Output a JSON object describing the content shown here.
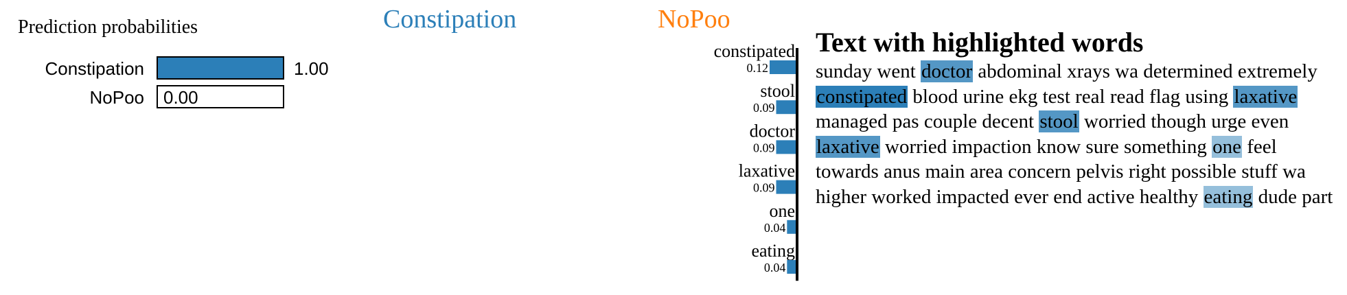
{
  "prediction_probabilities": {
    "title": "Prediction probabilities",
    "items": [
      {
        "label": "Constipation",
        "value": 1.0,
        "value_label": "1.00",
        "color": "#2c7fb8"
      },
      {
        "label": "NoPoo",
        "value": 0.0,
        "value_label": "0.00",
        "color": "#ff7f0e"
      }
    ]
  },
  "class_titles": {
    "left": "Constipation",
    "right": "NoPoo",
    "left_color": "#2c7fb8",
    "right_color": "#ff7f0e"
  },
  "chart_data": {
    "type": "bar",
    "orientation": "horizontal",
    "side": "Constipation",
    "bar_color": "#2c7fb8",
    "categories": [
      "constipated",
      "stool",
      "doctor",
      "laxative",
      "one",
      "eating"
    ],
    "values": [
      0.12,
      0.09,
      0.09,
      0.09,
      0.04,
      0.04
    ],
    "value_labels": [
      "0.12",
      "0.09",
      "0.09",
      "0.09",
      "0.04",
      "0.04"
    ],
    "xlim": [
      0,
      0.12
    ]
  },
  "highlighted_text": {
    "title": "Text with highlighted words",
    "highlight_color": "#2c7fb8",
    "tokens": [
      {
        "t": "sunday"
      },
      {
        "t": "went"
      },
      {
        "t": "doctor",
        "w": 0.09
      },
      {
        "t": "abdominal"
      },
      {
        "t": "xrays"
      },
      {
        "t": "wa"
      },
      {
        "t": "determined"
      },
      {
        "t": "extremely"
      },
      {
        "t": "constipated",
        "w": 0.12
      },
      {
        "t": "blood"
      },
      {
        "t": "urine"
      },
      {
        "t": "ekg"
      },
      {
        "t": "test"
      },
      {
        "t": "real"
      },
      {
        "t": "read"
      },
      {
        "t": "flag"
      },
      {
        "t": "using"
      },
      {
        "t": "laxative",
        "w": 0.09
      },
      {
        "t": "managed"
      },
      {
        "t": "pas"
      },
      {
        "t": "couple"
      },
      {
        "t": "decent"
      },
      {
        "t": "stool",
        "w": 0.09
      },
      {
        "t": "worried"
      },
      {
        "t": "though"
      },
      {
        "t": "urge"
      },
      {
        "t": "even"
      },
      {
        "t": "laxative",
        "w": 0.09
      },
      {
        "t": "worried"
      },
      {
        "t": "impaction"
      },
      {
        "t": "know"
      },
      {
        "t": "sure"
      },
      {
        "t": "something"
      },
      {
        "t": "one",
        "w": 0.04
      },
      {
        "t": "feel"
      },
      {
        "t": "towards"
      },
      {
        "t": "anus"
      },
      {
        "t": "main"
      },
      {
        "t": "area"
      },
      {
        "t": "concern"
      },
      {
        "t": "pelvis"
      },
      {
        "t": "right"
      },
      {
        "t": "possible"
      },
      {
        "t": "stuff"
      },
      {
        "t": "wa"
      },
      {
        "t": "higher"
      },
      {
        "t": "worked"
      },
      {
        "t": "impacted"
      },
      {
        "t": "ever"
      },
      {
        "t": "end"
      },
      {
        "t": "active"
      },
      {
        "t": "healthy"
      },
      {
        "t": "eating",
        "w": 0.04
      },
      {
        "t": "dude"
      },
      {
        "t": "part"
      }
    ]
  }
}
